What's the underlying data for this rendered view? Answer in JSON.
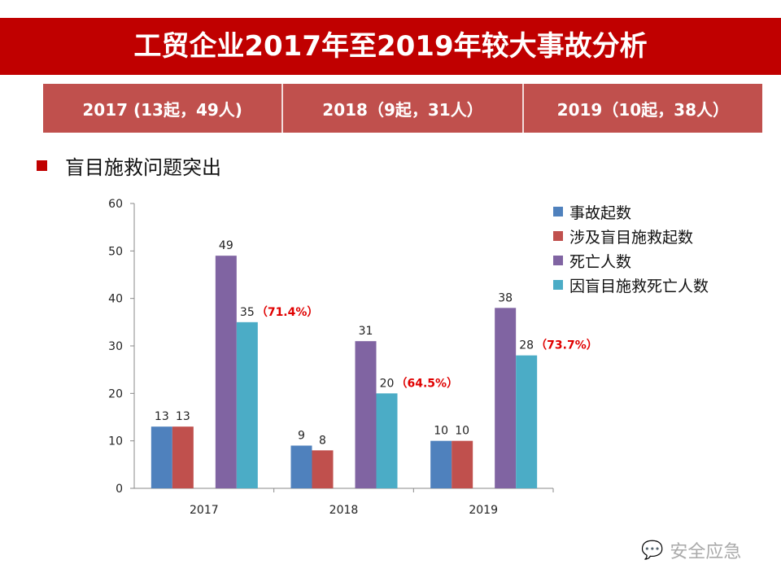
{
  "title": "工贸企业2017年至2019年较大事故分析",
  "summary": [
    "2017 (13起，49人)",
    "2018（9起，31人）",
    "2019（10起，38人）"
  ],
  "subheading": "盲目施救问题突出",
  "watermark": "安全应急",
  "chart_data": {
    "type": "bar",
    "categories": [
      "2017",
      "2018",
      "2019"
    ],
    "ylim": [
      0,
      60
    ],
    "yticks": [
      0,
      10,
      20,
      30,
      40,
      50,
      60
    ],
    "grid": false,
    "legend_position": "right",
    "series": [
      {
        "name": "事故起数",
        "values": [
          13,
          9,
          10
        ],
        "color": "#4f81bd"
      },
      {
        "name": "涉及盲目施救起数",
        "values": [
          13,
          8,
          10
        ],
        "color": "#c0504d"
      },
      {
        "name": "死亡人数",
        "values": [
          49,
          31,
          38
        ],
        "color": "#8064a2"
      },
      {
        "name": "因盲目施救死亡人数",
        "values": [
          35,
          20,
          28
        ],
        "color": "#4bacc6"
      }
    ],
    "annotations": [
      "（71.4%）",
      "（64.5%）",
      "（73.7%）"
    ],
    "annotation_color": "#e00000"
  }
}
